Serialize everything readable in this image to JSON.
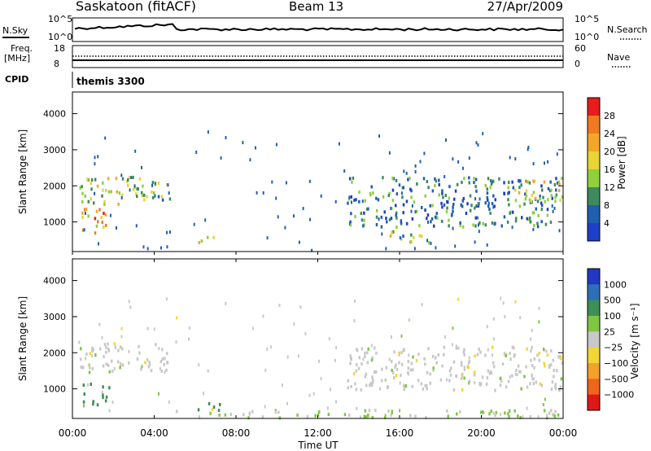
{
  "header": {
    "station": "Saskatoon (fitACF)",
    "beam": "Beam 13",
    "date": "27/Apr/2009"
  },
  "strip_panels": {
    "nsky_label": "N.Sky",
    "nsearch_label": "N.Search",
    "freq_label": "Freq.",
    "freq_unit": "[MHz]",
    "nave_label": "Nave",
    "cpid_label": "CPID",
    "cpid_value": "themis 3300",
    "noise_ticks": [
      "10^5",
      "10^0"
    ],
    "freq_ticks": [
      "18",
      "8"
    ],
    "nave_ticks": [
      "60",
      "0"
    ]
  },
  "axes": {
    "ylabel": "Slant Range [km]",
    "xlabel": "Time UT",
    "yticks": [
      "4000",
      "3000",
      "2000",
      "1000"
    ],
    "xticks": [
      "00:00",
      "04:00",
      "08:00",
      "12:00",
      "16:00",
      "20:00",
      "00:00"
    ]
  },
  "colorbars": {
    "power_label": "Power [dB]",
    "power_ticks": [
      "28",
      "24",
      "20",
      "16",
      "12",
      "8",
      "4"
    ],
    "power_colors": [
      "#e81c1c",
      "#f07a22",
      "#f4a628",
      "#e8d434",
      "#8fd03c",
      "#3d8b5c",
      "#1f5fb0",
      "#1e3fc8"
    ],
    "velocity_label": "Velocity [m s⁻¹]",
    "velocity_ticks": [
      "1000",
      "500",
      "100",
      "25",
      "−25",
      "−100",
      "−500",
      "−1000"
    ],
    "velocity_colors": [
      "#2238c4",
      "#2e70b8",
      "#3d8f55",
      "#7fc642",
      "#c8c8c8",
      "#f2d638",
      "#f2a12a",
      "#f0651e",
      "#e01818"
    ]
  },
  "chart_data": [
    {
      "type": "heatmap",
      "title": "",
      "quantity": "Power [dB]",
      "xlabel": "Time UT",
      "ylabel": "Slant Range [km]",
      "xlim": [
        0,
        24
      ],
      "ylim": [
        180,
        4600
      ],
      "regions": [
        {
          "t0": 0.3,
          "t1": 4.8,
          "r0": 1500,
          "r1": 2300,
          "value": 14
        },
        {
          "t0": 0.4,
          "t1": 1.9,
          "r0": 700,
          "r1": 1400,
          "value": 22
        },
        {
          "t0": 6.0,
          "t1": 7.0,
          "r0": 450,
          "r1": 700,
          "value": 20
        },
        {
          "t0": 13.4,
          "t1": 24,
          "r0": 900,
          "r1": 2300,
          "value": 8
        },
        {
          "t0": 21.5,
          "t1": 24,
          "r0": 1600,
          "r1": 2200,
          "value": 18
        },
        {
          "t0": 15.5,
          "t1": 17.5,
          "r0": 400,
          "r1": 800,
          "value": 14
        }
      ]
    },
    {
      "type": "heatmap",
      "title": "",
      "quantity": "Velocity [m s⁻¹]",
      "xlabel": "Time UT",
      "ylabel": "Slant Range [km]",
      "xlim": [
        0,
        24
      ],
      "ylim": [
        180,
        4600
      ],
      "regions": [
        {
          "t0": 0.3,
          "t1": 4.8,
          "r0": 1500,
          "r1": 2300,
          "value": 0
        },
        {
          "t0": 0.5,
          "t1": 1.8,
          "r0": 600,
          "r1": 1200,
          "value": 300
        },
        {
          "t0": 6.0,
          "t1": 7.2,
          "r0": 400,
          "r1": 650,
          "value": 200
        },
        {
          "t0": 13.4,
          "t1": 24,
          "r0": 1000,
          "r1": 2200,
          "value": 0
        },
        {
          "t0": 5,
          "t1": 24,
          "r0": 180,
          "r1": 450,
          "value": 30
        }
      ]
    }
  ]
}
